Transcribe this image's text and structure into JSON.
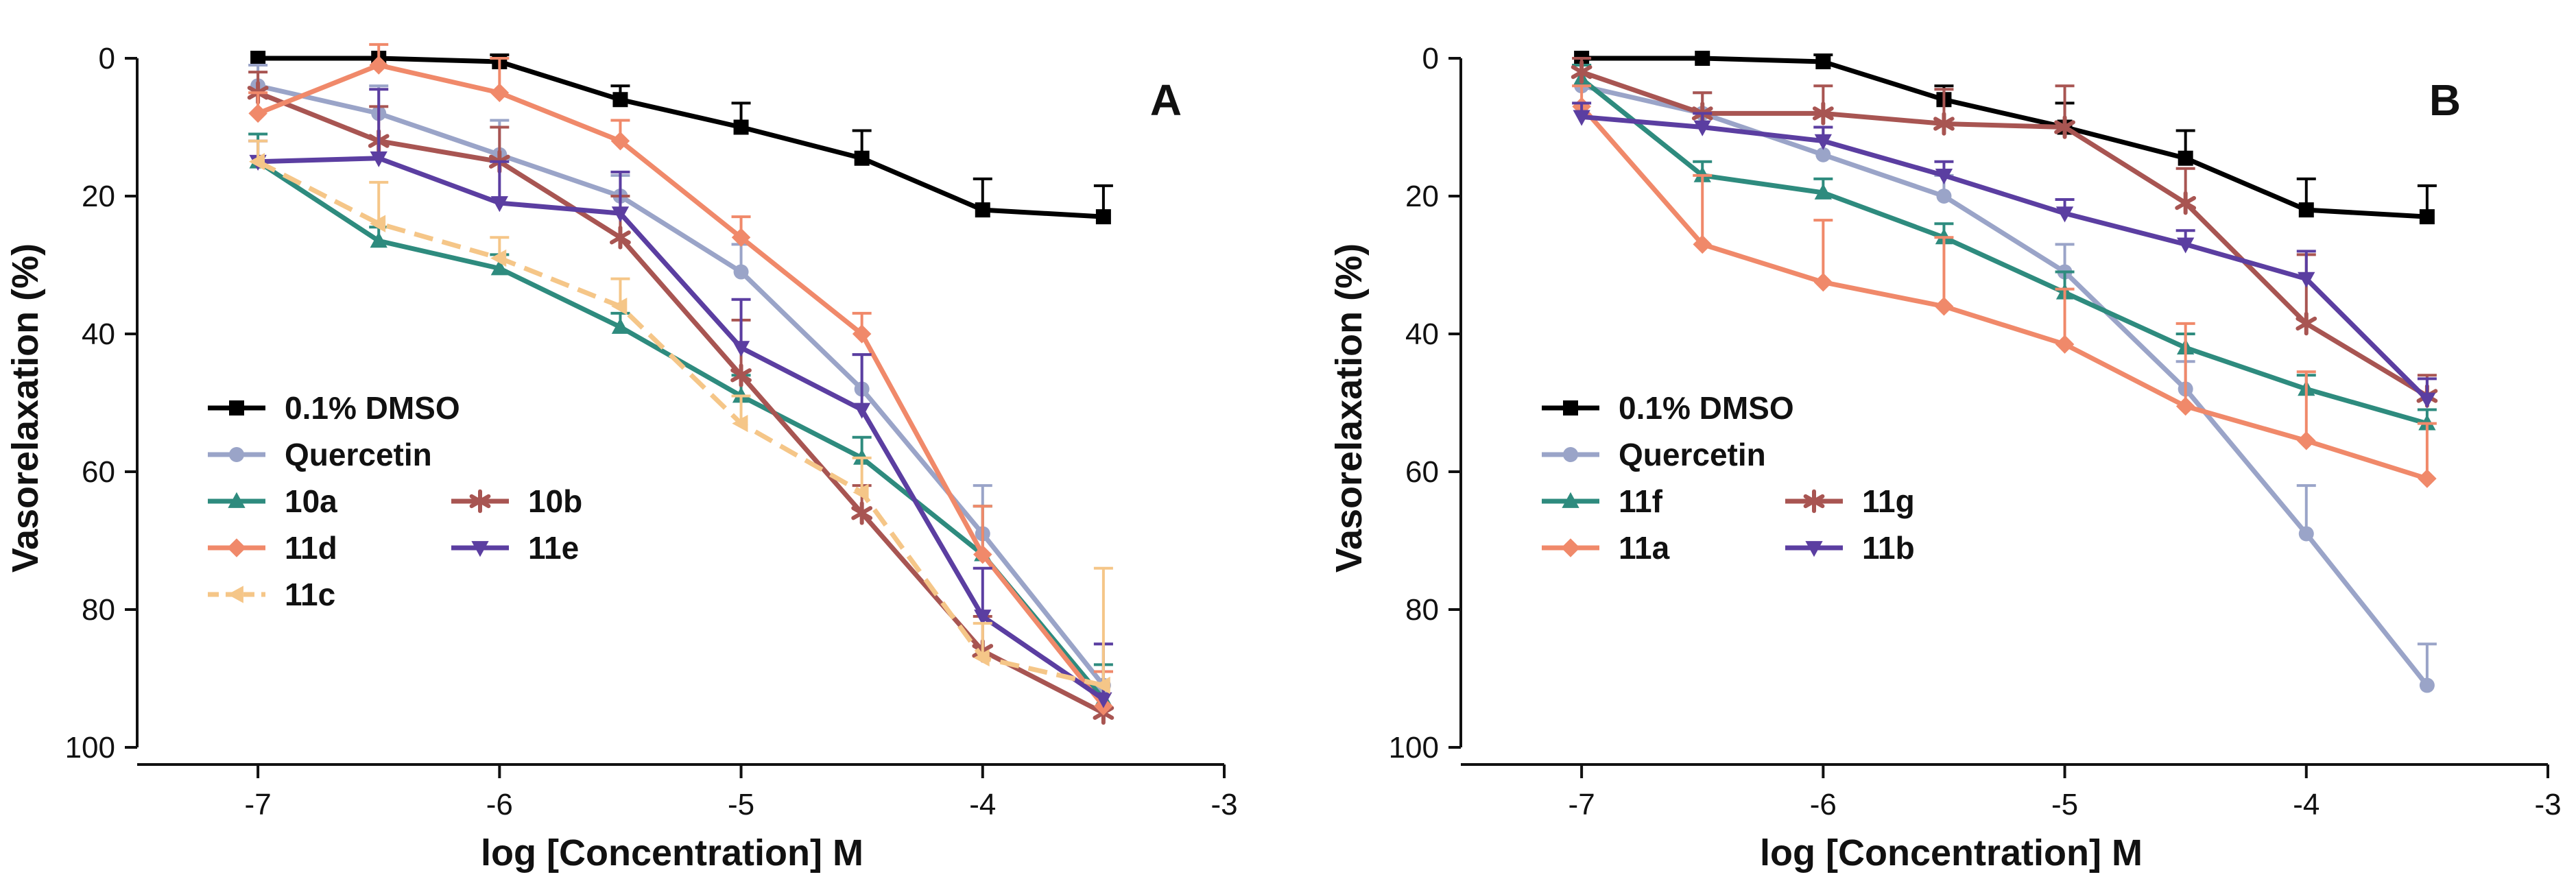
{
  "chart_data": [
    {
      "type": "line",
      "panel_label": "A",
      "xlabel": "log [Concentration] M",
      "ylabel": "Vasorelaxation (%)",
      "xlim": [
        -7.5,
        -3
      ],
      "ylim": [
        0,
        100
      ],
      "y_inverted": true,
      "xticks": [
        -7,
        -6,
        -5,
        -4,
        -3
      ],
      "yticks": [
        0,
        20,
        40,
        60,
        80,
        100
      ],
      "x": [
        -7,
        -6.5,
        -6,
        -5.5,
        -5,
        -4.5,
        -4,
        -3.5
      ],
      "legend_position": "lower-left",
      "series": [
        {
          "name": "0.1% DMSO",
          "color": "#000000",
          "marker": "square",
          "dashed": false,
          "values": [
            0,
            0,
            0.5,
            6,
            10,
            14.5,
            22,
            23
          ],
          "errors": [
            0,
            0,
            1,
            2,
            3.5,
            4,
            4.5,
            4.5
          ]
        },
        {
          "name": "Quercetin",
          "color": "#9aa4c8",
          "marker": "circle",
          "dashed": false,
          "values": [
            4,
            8,
            14,
            20,
            31,
            48,
            69,
            91
          ],
          "errors": [
            3,
            4,
            5,
            3,
            4,
            5,
            7,
            6
          ]
        },
        {
          "name": "10a",
          "color": "#2e8b7e",
          "marker": "triangle-up",
          "dashed": false,
          "values": [
            15,
            26.5,
            30.5,
            39,
            49,
            58,
            72,
            93
          ],
          "errors": [
            4,
            2,
            2,
            2,
            3,
            3,
            7,
            5
          ]
        },
        {
          "name": "10b",
          "color": "#a85552",
          "marker": "star",
          "dashed": false,
          "values": [
            5,
            12,
            15,
            26,
            46,
            66,
            86,
            95
          ],
          "errors": [
            3,
            5,
            5,
            6,
            8,
            4,
            5,
            6
          ]
        },
        {
          "name": "11d",
          "color": "#f0896a",
          "marker": "diamond",
          "dashed": false,
          "values": [
            8,
            1,
            5,
            12,
            26,
            40,
            72,
            94
          ],
          "errors": [
            3,
            3,
            5,
            3,
            3,
            3,
            7,
            5
          ]
        },
        {
          "name": "11e",
          "color": "#5b3ea1",
          "marker": "triangle-down",
          "dashed": false,
          "values": [
            15,
            14.5,
            21,
            22.5,
            42,
            51,
            81,
            93
          ],
          "errors": [
            3,
            10,
            6,
            6,
            7,
            8,
            7,
            8
          ]
        },
        {
          "name": "11c",
          "color": "#f5c688",
          "marker": "triangle-left",
          "dashed": true,
          "values": [
            15,
            24,
            29,
            36,
            53,
            63,
            87,
            91
          ],
          "errors": [
            3,
            6,
            3,
            4,
            4,
            5,
            5,
            17
          ]
        }
      ]
    },
    {
      "type": "line",
      "panel_label": "B",
      "xlabel": "log [Concentration] M",
      "ylabel": "Vasorelaxation (%)",
      "xlim": [
        -7.5,
        -3
      ],
      "ylim": [
        0,
        100
      ],
      "y_inverted": true,
      "xticks": [
        -7,
        -6,
        -5,
        -4,
        -3
      ],
      "yticks": [
        0,
        20,
        40,
        60,
        80,
        100
      ],
      "x": [
        -7,
        -6.5,
        -6,
        -5.5,
        -5,
        -4.5,
        -4,
        -3.5
      ],
      "legend_position": "lower-left",
      "series": [
        {
          "name": "0.1% DMSO",
          "color": "#000000",
          "marker": "square",
          "dashed": false,
          "values": [
            0,
            0,
            0.5,
            6,
            10,
            14.5,
            22,
            23
          ],
          "errors": [
            0,
            0,
            1,
            2,
            3.5,
            4,
            4.5,
            4.5
          ]
        },
        {
          "name": "Quercetin",
          "color": "#9aa4c8",
          "marker": "circle",
          "dashed": false,
          "values": [
            4,
            8,
            14,
            20,
            31,
            48,
            69,
            91
          ],
          "errors": [
            3,
            3,
            4,
            3,
            4,
            4,
            7,
            6
          ]
        },
        {
          "name": "11f",
          "color": "#2e8b7e",
          "marker": "triangle-up",
          "dashed": false,
          "values": [
            3,
            17,
            19.5,
            26,
            34,
            42,
            48,
            53
          ],
          "errors": [
            2,
            2,
            2,
            2,
            3,
            2,
            2,
            2
          ]
        },
        {
          "name": "11g",
          "color": "#a85552",
          "marker": "star",
          "dashed": false,
          "values": [
            2,
            8,
            8,
            9.5,
            10,
            21,
            38.5,
            49
          ],
          "errors": [
            2,
            3,
            4,
            5,
            6,
            5,
            10,
            3
          ]
        },
        {
          "name": "11a",
          "color": "#f0896a",
          "marker": "diamond",
          "dashed": false,
          "values": [
            7,
            27,
            32.5,
            36,
            41.5,
            50.5,
            55.5,
            61
          ],
          "errors": [
            3,
            10,
            9,
            10,
            8,
            12,
            10,
            8
          ]
        },
        {
          "name": "11b",
          "color": "#5b3ea1",
          "marker": "triangle-down",
          "dashed": false,
          "values": [
            8.5,
            10,
            12,
            17,
            22.5,
            27,
            32,
            49.5
          ],
          "errors": [
            2,
            2,
            2,
            2,
            2,
            2,
            4,
            3
          ]
        }
      ]
    }
  ]
}
